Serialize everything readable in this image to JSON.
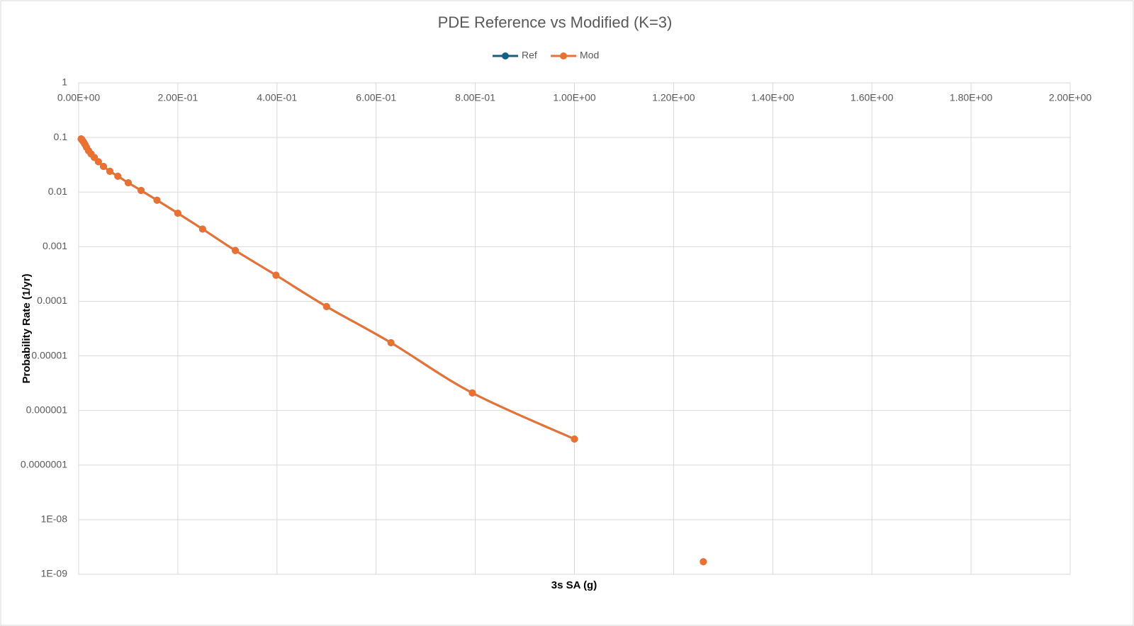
{
  "chart_data": {
    "type": "line",
    "title": "PDE Reference vs Modified (K=3)",
    "x_label": "3s SA (g)",
    "y_label": "Probability Rate (1/yr)",
    "x": [
      0.005,
      0.0063,
      0.0079,
      0.01,
      0.0126,
      0.0158,
      0.02,
      0.025,
      0.0316,
      0.0398,
      0.05,
      0.063,
      0.079,
      0.1,
      0.126,
      0.158,
      0.2,
      0.25,
      0.316,
      0.398,
      0.5,
      0.63,
      0.794,
      1.0,
      1.12,
      1.26
    ],
    "series": [
      {
        "name": "Ref",
        "color": "#156082",
        "values": [
          0.094,
          0.092,
          0.087,
          0.082,
          0.075,
          0.066,
          0.057,
          0.05,
          0.043,
          0.036,
          0.0295,
          0.024,
          0.0195,
          0.0148,
          0.0107,
          0.0071,
          0.0041,
          0.0021,
          0.00085,
          0.0003,
          8e-05,
          1.74e-05,
          2.1e-06,
          3e-07,
          null,
          1.7e-09
        ]
      },
      {
        "name": "Mod",
        "color": "#e97132",
        "values": [
          0.094,
          0.092,
          0.087,
          0.082,
          0.075,
          0.066,
          0.057,
          0.05,
          0.043,
          0.036,
          0.0295,
          0.024,
          0.0195,
          0.0148,
          0.0107,
          0.0071,
          0.0041,
          0.0021,
          0.00085,
          0.0003,
          8e-05,
          1.74e-05,
          2.1e-06,
          3e-07,
          null,
          1.7e-09
        ]
      }
    ],
    "xlim": [
      0,
      2
    ],
    "xticks": [
      {
        "value": 0,
        "label": "0.00E+00"
      },
      {
        "value": 0.2,
        "label": "2.00E-01"
      },
      {
        "value": 0.4,
        "label": "4.00E-01"
      },
      {
        "value": 0.6,
        "label": "6.00E-01"
      },
      {
        "value": 0.8,
        "label": "8.00E-01"
      },
      {
        "value": 1.0,
        "label": "1.00E+00"
      },
      {
        "value": 1.2,
        "label": "1.20E+00"
      },
      {
        "value": 1.4,
        "label": "1.40E+00"
      },
      {
        "value": 1.6,
        "label": "1.60E+00"
      },
      {
        "value": 1.8,
        "label": "1.80E+00"
      },
      {
        "value": 2.0,
        "label": "2.00E+00"
      }
    ],
    "ylim": [
      1e-09,
      1
    ],
    "yticks": [
      1,
      0.1,
      0.01,
      0.001,
      0.0001,
      {
        "value": 1e-05,
        "label": "0.00001"
      },
      {
        "value": 1e-06,
        "label": "0.000001"
      },
      {
        "value": 1e-07,
        "label": "0.0000001"
      },
      {
        "value": 1e-08,
        "label": "1E-08"
      },
      {
        "value": 1e-09,
        "label": "1E-09"
      }
    ],
    "y_log": true,
    "grid": true,
    "smooth": true,
    "legend": "top"
  }
}
